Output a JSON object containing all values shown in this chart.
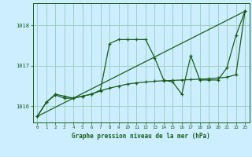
{
  "title": "Graphe pression niveau de la mer (hPa)",
  "xlabel_ticks": [
    0,
    1,
    2,
    3,
    4,
    5,
    6,
    7,
    8,
    9,
    10,
    11,
    12,
    13,
    14,
    15,
    16,
    17,
    18,
    19,
    20,
    21,
    22,
    23
  ],
  "ylim": [
    1015.6,
    1018.55
  ],
  "yticks": [
    1016,
    1017,
    1018
  ],
  "background_color": "#cceeff",
  "grid_color": "#99ccbb",
  "line_color": "#1a5e1a",
  "series1": [
    1015.75,
    1016.1,
    1016.3,
    1016.25,
    1016.2,
    1016.25,
    1016.3,
    1016.4,
    1017.55,
    1017.65,
    1017.65,
    1017.65,
    1017.65,
    1017.2,
    1016.65,
    1016.6,
    1016.3,
    1017.25,
    1016.65,
    1016.65,
    1016.65,
    1016.95,
    1017.75,
    1018.35
  ],
  "series2": [
    1015.75,
    1016.1,
    1016.28,
    1016.2,
    1016.2,
    1016.25,
    1016.3,
    1016.38,
    1016.45,
    1016.5,
    1016.55,
    1016.58,
    1016.6,
    1016.62,
    1016.63,
    1016.64,
    1016.65,
    1016.66,
    1016.67,
    1016.68,
    1016.7,
    1016.72,
    1016.78,
    1018.35
  ],
  "trend_x": [
    0,
    23
  ],
  "trend_y": [
    1015.75,
    1018.35
  ]
}
